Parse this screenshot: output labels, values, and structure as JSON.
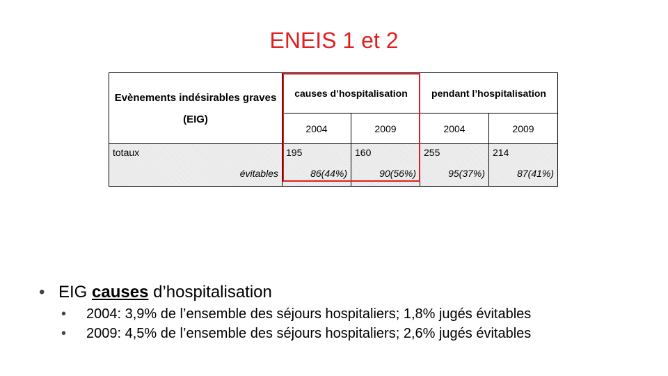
{
  "slide": {
    "title": "ENEIS 1 et 2"
  },
  "table": {
    "header_main": "Evènements indésirables graves (EIG)",
    "group_causes": "causes d’hospitalisation",
    "group_pendant": "pendant l’hospitalisation",
    "years": [
      "2004",
      "2009",
      "2004",
      "2009"
    ],
    "row_totaux": {
      "label": "totaux",
      "values": [
        "195",
        "160",
        "255",
        "214"
      ]
    },
    "row_evitables": {
      "label": "évitables",
      "values": [
        "86(44%)",
        "90(56%)",
        "95(37%)",
        "87(41%)"
      ]
    }
  },
  "bullets": {
    "main_prefix": "EIG ",
    "main_emphasis": "causes",
    "main_suffix": " d’hospitalisation",
    "sub": [
      "2004: 3,9% de l’ensemble des séjours hospitaliers; 1,8% jugés évitables",
      "2009: 4,5% de l’ensemble des séjours hospitaliers; 2,6% jugés évitables"
    ],
    "marker": "•"
  }
}
